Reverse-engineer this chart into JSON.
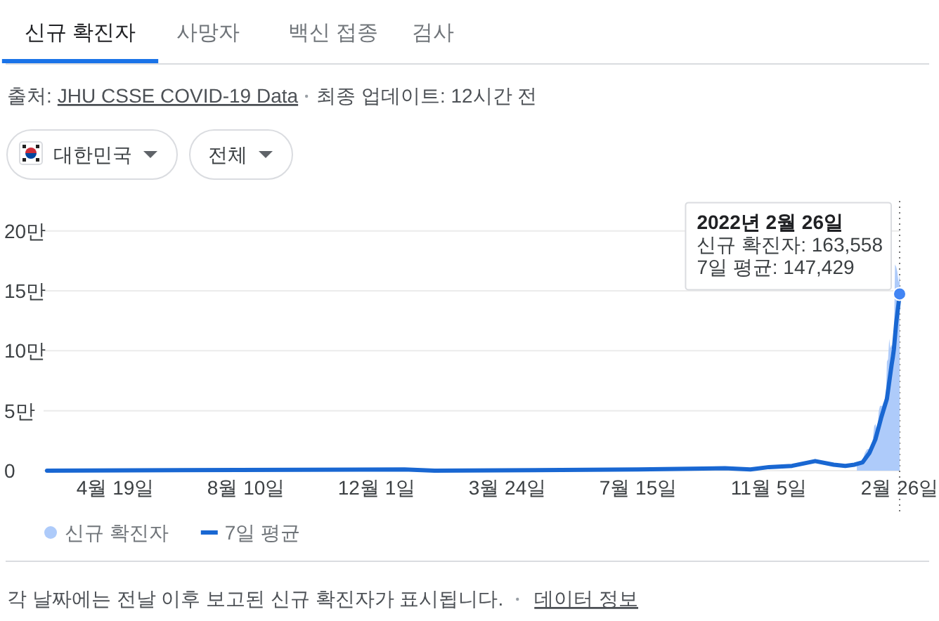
{
  "chart_data": {
    "type": "line",
    "series": [
      {
        "name": "신규 확진자",
        "type": "area",
        "color": "#aecbfa",
        "x": [
          "2022-01-20",
          "2022-01-22",
          "2022-01-25",
          "2022-01-27",
          "2022-01-29",
          "2022-01-31",
          "2022-02-02",
          "2022-02-03",
          "2022-02-04",
          "2022-02-05",
          "2022-02-06",
          "2022-02-07",
          "2022-02-08",
          "2022-02-09",
          "2022-02-10",
          "2022-02-11",
          "2022-02-12",
          "2022-02-13",
          "2022-02-14",
          "2022-02-15",
          "2022-02-16",
          "2022-02-17",
          "2022-02-18",
          "2022-02-19",
          "2022-02-20",
          "2022-02-21",
          "2022-02-22",
          "2022-02-23",
          "2022-02-24",
          "2022-02-25",
          "2022-02-26"
        ],
        "values": [
          0.7,
          0.7,
          0.9,
          1.5,
          1.8,
          1.8,
          2.0,
          2.8,
          3.7,
          3.9,
          3.5,
          3.7,
          5.0,
          5.4,
          5.4,
          5.4,
          5.7,
          5.5,
          5.7,
          9.1,
          9.3,
          11.0,
          10.2,
          10.5,
          10.0,
          10.5,
          17.2,
          17.0,
          16.6,
          15.7,
          16.3558
        ]
      },
      {
        "name": "7일 평균",
        "color": "#1967d2",
        "x": [
          "2020-02-20",
          "2020-12-25",
          "2021-01-20",
          "2021-07-15",
          "2021-09-28",
          "2021-10-20",
          "2021-11-05",
          "2021-11-25",
          "2021-12-15",
          "2021-12-31",
          "2022-01-10",
          "2022-01-18",
          "2022-01-25",
          "2022-01-31",
          "2022-02-05",
          "2022-02-10",
          "2022-02-15",
          "2022-02-19",
          "2022-02-20",
          "2022-02-21",
          "2022-02-22",
          "2022-02-23",
          "2022-02-24",
          "2022-02-25",
          "2022-02-26"
        ],
        "values": [
          0,
          0.1,
          0,
          0.1,
          0.2,
          0.1,
          0.3,
          0.4,
          0.8,
          0.5,
          0.4,
          0.5,
          0.7,
          1.5,
          2.6,
          4.4,
          6.0,
          8.8,
          9.4,
          10.1,
          11.2,
          12.3,
          13.1,
          13.9,
          14.7429
        ]
      }
    ],
    "xlim": [
      "2020-02-17",
      "2022-02-26"
    ],
    "xticks": [
      {
        "value": "2020-04-19",
        "label": "4월 19일"
      },
      {
        "value": "2020-08-10",
        "label": "8월 10일"
      },
      {
        "value": "2020-12-01",
        "label": "12월 1일"
      },
      {
        "value": "2021-03-24",
        "label": "3월 24일"
      },
      {
        "value": "2021-07-15",
        "label": "7월 15일"
      },
      {
        "value": "2021-11-05",
        "label": "11월 5일"
      },
      {
        "value": "2022-02-26",
        "label": "2월 26일"
      }
    ],
    "ylim": [
      0,
      22.5
    ],
    "yticks": [
      0,
      {
        "value": 5,
        "label": "5만"
      },
      {
        "value": 10,
        "label": "10만"
      },
      {
        "value": 15,
        "label": "15만"
      },
      {
        "value": 20,
        "label": "20만"
      }
    ],
    "grid": "y",
    "legend": "bottom",
    "ref_lines": [
      {
        "axis": "x",
        "value": "2022-02-26",
        "color": "#757575",
        "line_style": "dotted"
      }
    ],
    "annotations": [
      "신규 확진자",
      "사망자",
      "백신 접종",
      "검사",
      "출처:",
      "JHU CSSE COVID-19 Data",
      "최종 업데이트: 12시간 전",
      "대한민국",
      "전체",
      "각 날짜에는 전날 이후 보고된 신규 확진자가 표시됩니다.",
      "데이터 정보",
      {
        "text": "2022년 2월 26일\n신규 확진자: 163,558\n7일 평균: 147,429",
        "x": "2022-02-26",
        "y": 14.7429
      }
    ]
  }
}
